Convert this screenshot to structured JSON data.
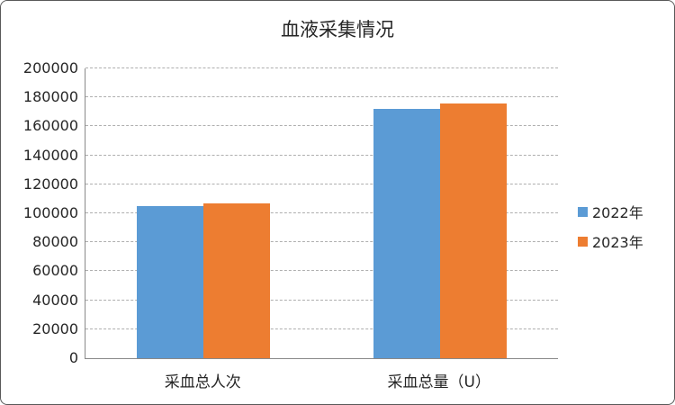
{
  "chart_data": {
    "type": "bar",
    "title": "血液采集情况",
    "categories": [
      "采血总人次",
      "采血总量（U）"
    ],
    "series": [
      {
        "name": "2022年",
        "color": "#5B9BD5",
        "values": [
          105000,
          172000
        ]
      },
      {
        "name": "2023年",
        "color": "#ED7D31",
        "values": [
          107000,
          176000
        ]
      }
    ],
    "xlabel": "",
    "ylabel": "",
    "ylim": [
      0,
      200000
    ],
    "yticks": [
      0,
      20000,
      40000,
      60000,
      80000,
      100000,
      120000,
      140000,
      160000,
      180000,
      200000
    ],
    "grid": true,
    "legend_position": "right"
  },
  "colors": {
    "background": "#FFFFFF",
    "frame_border": "#595959",
    "axis_line": "#898989",
    "gridline": "#AFAFAF",
    "text": "#262626"
  }
}
